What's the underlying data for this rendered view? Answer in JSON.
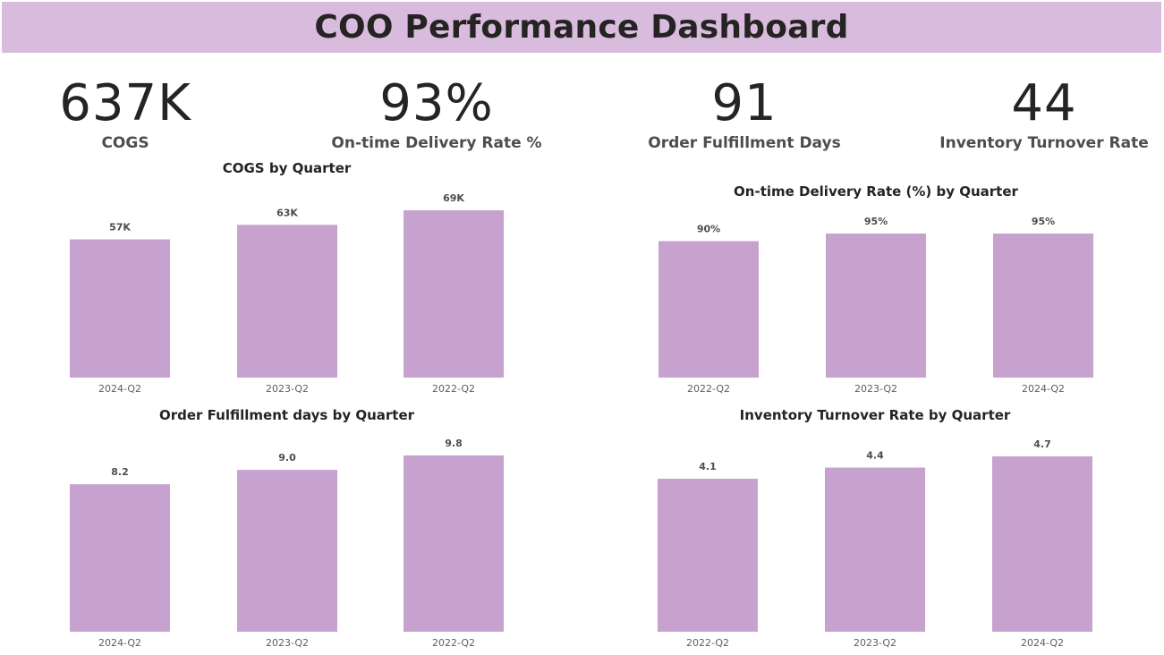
{
  "header": {
    "title": "COO Performance Dashboard"
  },
  "kpis": [
    {
      "value": "637K",
      "label": "COGS"
    },
    {
      "value": "93%",
      "label": "On-time Delivery Rate %"
    },
    {
      "value": "91",
      "label": "Order Fulfillment Days"
    },
    {
      "value": "44",
      "label": "Inventory Turnover Rate"
    }
  ],
  "colors": {
    "bar": "#c8a2ce",
    "banner": "#d9bcdd"
  },
  "chart_data": [
    {
      "type": "bar",
      "title": "COGS by Quarter",
      "categories": [
        "2024-Q2",
        "2023-Q2",
        "2022-Q2"
      ],
      "values": [
        57,
        63,
        69
      ],
      "data_labels": [
        "57K",
        "63K",
        "69K"
      ],
      "ylim": [
        0,
        69
      ],
      "grid": false,
      "legend": "none"
    },
    {
      "type": "bar",
      "title": "On-time Delivery Rate (%) by Quarter",
      "categories": [
        "2022-Q2",
        "2023-Q2",
        "2024-Q2"
      ],
      "values": [
        90,
        95,
        95
      ],
      "data_labels": [
        "90%",
        "95%",
        "95%"
      ],
      "ylim": [
        0,
        95
      ],
      "grid": false,
      "legend": "none"
    },
    {
      "type": "bar",
      "title": "Order Fulfillment days by Quarter",
      "categories": [
        "2024-Q2",
        "2023-Q2",
        "2022-Q2"
      ],
      "values": [
        8.2,
        9.0,
        9.8
      ],
      "data_labels": [
        "8.2",
        "9.0",
        "9.8"
      ],
      "ylim": [
        0,
        9.8
      ],
      "grid": false,
      "legend": "none"
    },
    {
      "type": "bar",
      "title": "Inventory Turnover Rate by Quarter",
      "categories": [
        "2022-Q2",
        "2023-Q2",
        "2024-Q2"
      ],
      "values": [
        4.1,
        4.4,
        4.7
      ],
      "data_labels": [
        "4.1",
        "4.4",
        "4.7"
      ],
      "ylim": [
        0,
        4.7
      ],
      "grid": false,
      "legend": "none"
    }
  ]
}
